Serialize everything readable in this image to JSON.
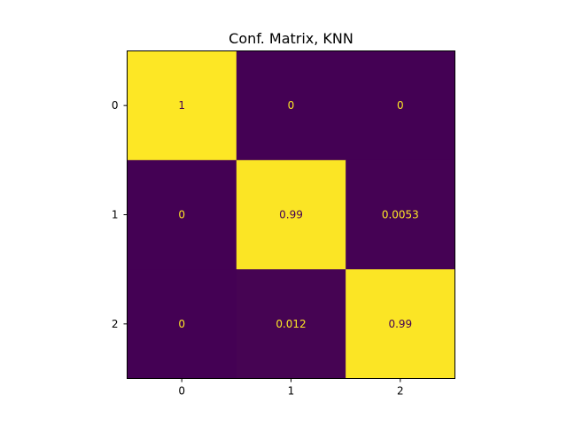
{
  "chart_data": {
    "type": "heatmap",
    "title": "Conf. Matrix, KNN",
    "xlabel": "",
    "ylabel": "",
    "x_ticks": [
      "0",
      "1",
      "2"
    ],
    "y_ticks": [
      "0",
      "1",
      "2"
    ],
    "values": [
      [
        1,
        0,
        0
      ],
      [
        0,
        0.99,
        0.0053
      ],
      [
        0,
        0.012,
        0.99
      ]
    ],
    "value_labels": [
      [
        "1",
        "0",
        "0"
      ],
      [
        "0",
        "0.99",
        "0.0053"
      ],
      [
        "0",
        "0.012",
        "0.99"
      ]
    ],
    "colormap": "viridis",
    "colors": {
      "low": "#440154",
      "high": "#fde725",
      "label_on_low": "#fde725",
      "label_on_high": "#440154"
    },
    "grid": false,
    "colorbar": false
  }
}
